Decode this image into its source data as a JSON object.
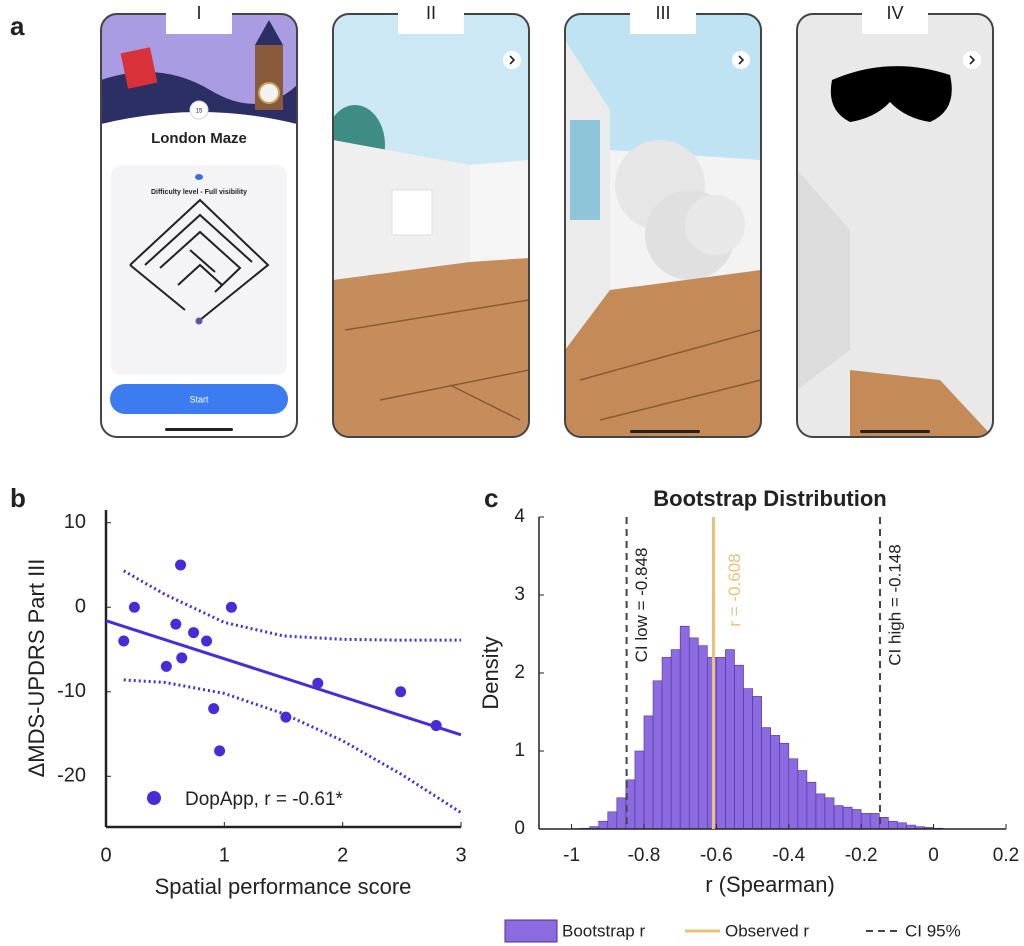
{
  "panel_labels": [
    "a",
    "b",
    "c"
  ],
  "phones": [
    {
      "tab": "I"
    },
    {
      "tab": "II"
    },
    {
      "tab": "III"
    },
    {
      "tab": "IV"
    }
  ],
  "maze_screen": {
    "badge": "15",
    "title": "London Maze",
    "subtitle": "Difficulty level - Full visibility",
    "button": "Start"
  },
  "chart_data": [
    {
      "type": "scatter",
      "x_label": "Spatial performance score",
      "y_label": "ΔMDS-UPDRS Part III",
      "series": [
        {
          "name": "DopApp, r = -0.61*",
          "color": "#4a2bd8",
          "x": [
            0.15,
            0.24,
            0.51,
            0.63,
            0.59,
            0.64,
            0.74,
            0.85,
            0.91,
            0.96,
            1.06,
            1.52,
            1.79,
            2.49,
            2.79
          ],
          "values": [
            -4,
            0,
            -7,
            5,
            -2,
            -6,
            -3,
            -4,
            -12,
            -17,
            0,
            -13,
            -9,
            -10,
            -14
          ]
        }
      ],
      "fit_line": {
        "x": [
          0,
          3
        ],
        "values": [
          -1.6,
          -15.1
        ]
      },
      "confidence_band": [
        {
          "x": [
            0.15,
            0.5,
            1.0,
            1.5,
            2.0,
            2.5,
            3.0
          ],
          "values": [
            4.3,
            1.5,
            -1.8,
            -3.4,
            -3.8,
            -3.9,
            -3.9
          ]
        },
        {
          "x": [
            0.15,
            0.5,
            1.0,
            1.5,
            2.0,
            2.5,
            3.0
          ],
          "values": [
            -8.6,
            -8.9,
            -10.2,
            -12.6,
            -15.8,
            -19.8,
            -24.3
          ]
        }
      ],
      "xlim": [
        0,
        3
      ],
      "xticks": [
        0,
        1,
        2,
        3
      ],
      "ylim": [
        -26,
        11.5
      ],
      "yticks": [
        -20,
        -10,
        0,
        10
      ]
    },
    {
      "type": "histogram",
      "title": "Bootstrap Distribution",
      "x_label": "r (Spearman)",
      "y_label": "Density",
      "series": [
        {
          "name": "Bootstrap r",
          "color": "#8c6be0",
          "bins": [
            -1.0,
            -0.975,
            -0.95,
            -0.925,
            -0.9,
            -0.875,
            -0.85,
            -0.825,
            -0.8,
            -0.775,
            -0.75,
            -0.725,
            -0.7,
            -0.675,
            -0.65,
            -0.625,
            -0.6,
            -0.575,
            -0.55,
            -0.525,
            -0.5,
            -0.475,
            -0.45,
            -0.425,
            -0.4,
            -0.375,
            -0.35,
            -0.325,
            -0.3,
            -0.275,
            -0.25,
            -0.225,
            -0.2,
            -0.175,
            -0.15,
            -0.125,
            -0.1,
            -0.075,
            -0.05,
            -0.025,
            0,
            0.025
          ],
          "values": [
            0.005,
            0.01,
            0.03,
            0.1,
            0.22,
            0.4,
            0.63,
            1.0,
            1.45,
            1.9,
            2.2,
            2.3,
            2.6,
            2.45,
            2.35,
            2.2,
            2.2,
            2.3,
            2.1,
            1.8,
            1.7,
            1.3,
            1.2,
            1.1,
            0.9,
            0.75,
            0.6,
            0.45,
            0.4,
            0.3,
            0.28,
            0.25,
            0.2,
            0.2,
            0.15,
            0.1,
            0.08,
            0.05,
            0.03,
            0.02,
            0.01
          ]
        }
      ],
      "observed": {
        "name": "Observed r",
        "value": -0.608,
        "label": "r = -0.608",
        "color": "#e8c27a"
      },
      "ci": {
        "name": "CI 95%",
        "values": [
          -0.848,
          -0.148
        ],
        "labels": [
          "CI low = -0.848",
          "CI high = -0.148"
        ],
        "color": "#444444"
      },
      "xlim": [
        -1.09,
        0.2
      ],
      "xticks": [
        -1,
        -0.8,
        -0.6,
        -0.4,
        -0.2,
        0,
        0.2
      ],
      "ylim": [
        0,
        4
      ],
      "yticks": [
        0,
        1,
        2,
        3,
        4
      ]
    }
  ]
}
